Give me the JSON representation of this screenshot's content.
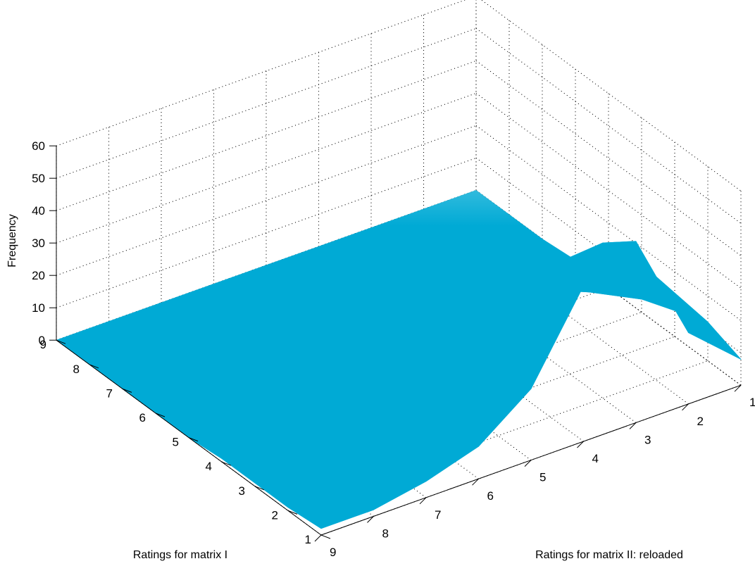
{
  "chart_data": {
    "type": "surface",
    "title": "",
    "xlabel": "Ratings for matrix I",
    "ylabel": "Ratings for matrix II: reloaded",
    "zlabel": "Frequency",
    "x_ticks": [
      "1",
      "2",
      "3",
      "4",
      "5",
      "6",
      "7",
      "8",
      "9"
    ],
    "y_ticks": [
      "1",
      "2",
      "3",
      "4",
      "5",
      "6",
      "7",
      "8",
      "9"
    ],
    "z_ticks": [
      "0",
      "10",
      "20",
      "30",
      "40",
      "50",
      "60"
    ],
    "xlim": [
      1,
      9
    ],
    "ylim": [
      1,
      9
    ],
    "zlim": [
      0,
      60
    ],
    "grid": true,
    "colormap": [
      "#00aad5",
      "#ffffff"
    ],
    "z": [
      [
        8,
        22,
        56,
        48,
        22,
        10,
        5,
        2,
        2
      ],
      [
        12,
        32,
        48,
        38,
        12,
        6,
        3,
        1,
        1
      ],
      [
        8,
        22,
        36,
        26,
        9,
        4,
        2,
        1,
        1
      ],
      [
        4,
        12,
        20,
        14,
        6,
        3,
        2,
        1,
        1
      ],
      [
        2,
        5,
        8,
        6,
        3,
        2,
        1,
        1,
        0
      ],
      [
        1,
        2,
        3,
        3,
        2,
        1,
        1,
        0,
        0
      ],
      [
        0,
        1,
        1,
        1,
        1,
        0,
        0,
        0,
        0
      ],
      [
        0,
        0,
        0,
        0,
        0,
        0,
        0,
        0,
        0
      ],
      [
        0,
        0,
        0,
        0,
        0,
        0,
        0,
        0,
        0
      ]
    ]
  }
}
